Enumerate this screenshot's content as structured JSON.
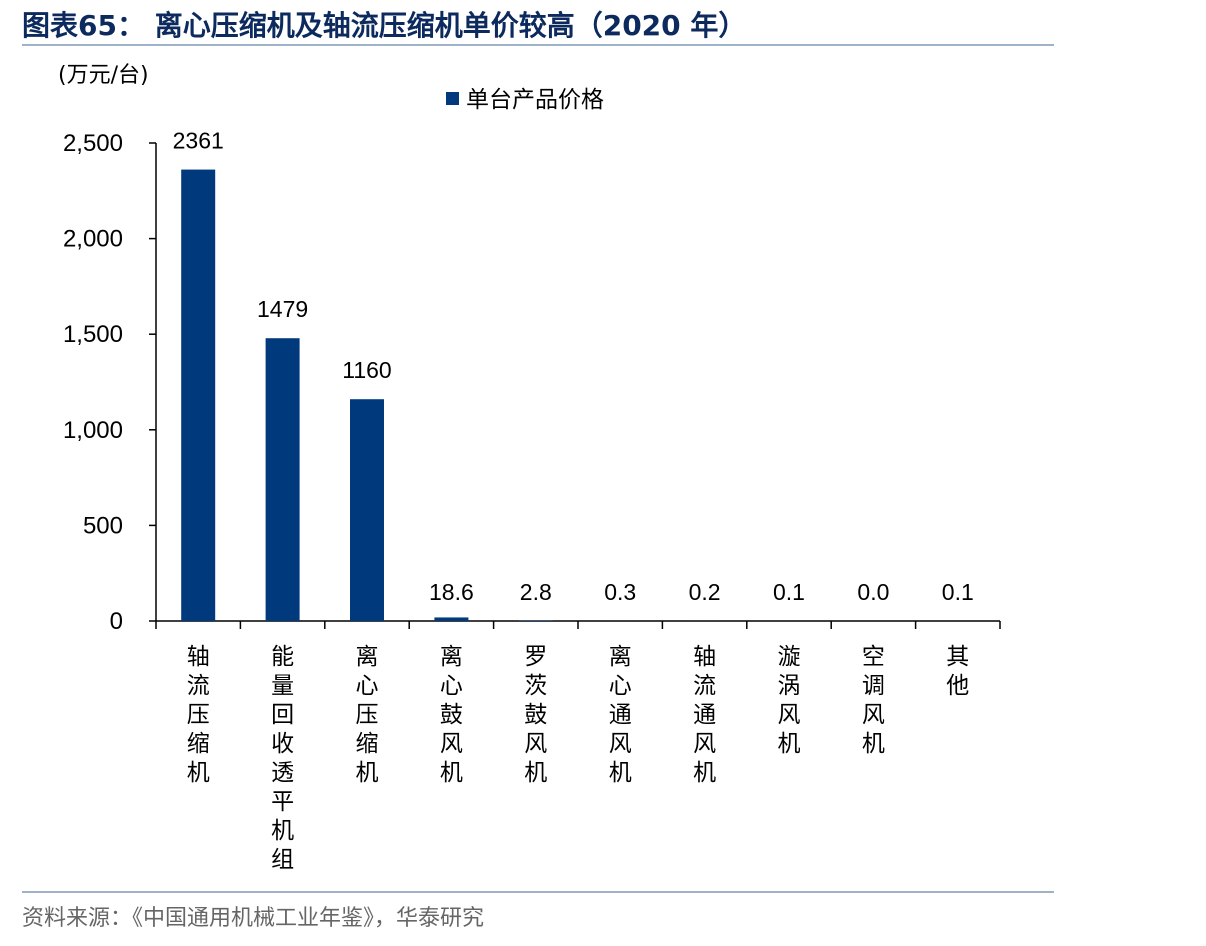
{
  "figure": {
    "title": "图表65： 离心压缩机及轴流压缩机单价较高（2020 年）",
    "source": "资料来源：《中国通用机械工业年鉴》，华泰研究"
  },
  "chart_data": {
    "type": "bar",
    "unit": "(万元/台)",
    "categories": [
      "轴流压缩机",
      "能量回收透平机组",
      "离心压缩机",
      "离心鼓风机",
      "罗茨鼓风机",
      "离心通风机",
      "轴流通风机",
      "漩涡风机",
      "空调风机",
      "其他"
    ],
    "series": [
      {
        "name": "单台产品价格",
        "values": [
          2361,
          1479,
          1160,
          18.6,
          2.8,
          0.3,
          0.2,
          0.1,
          0.0,
          0.1
        ],
        "data_labels": [
          "2361",
          "1479",
          "1160",
          "18.6",
          "2.8",
          "0.3",
          "0.2",
          "0.1",
          "0.0",
          "0.1"
        ],
        "color": "#003a7d"
      }
    ],
    "ylim": [
      0,
      2500
    ],
    "yticks": [
      0,
      500,
      1000,
      1500,
      2000,
      2500
    ],
    "ytick_labels": [
      "0",
      "500",
      "1,000",
      "1,500",
      "2,000",
      "2,500"
    ],
    "legend_position": "top-center",
    "grid": false
  }
}
